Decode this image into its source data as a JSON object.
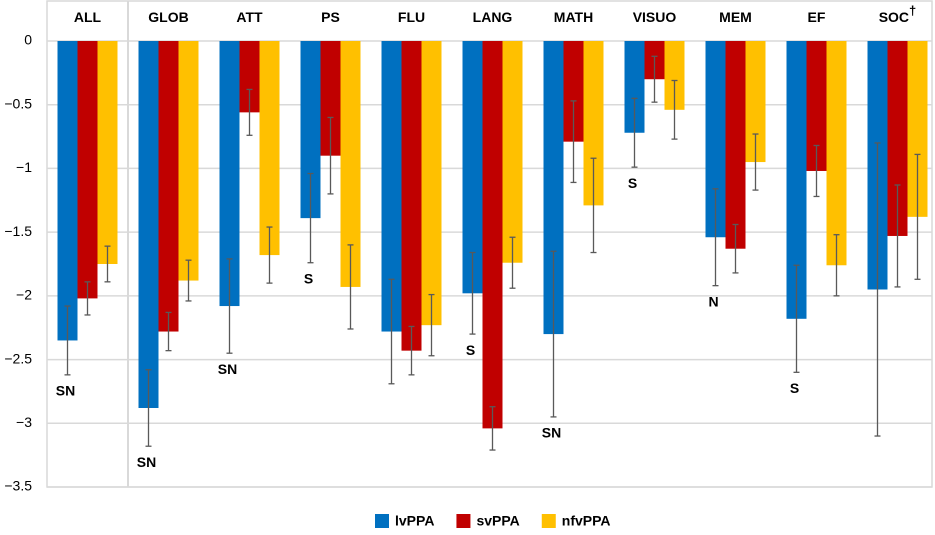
{
  "chart_data": {
    "type": "bar",
    "categories": [
      "ALL",
      "GLOB",
      "ATT",
      "PS",
      "FLU",
      "LANG",
      "MATH",
      "VISUO",
      "MEM",
      "EF",
      "SOC"
    ],
    "category_markers": [
      null,
      null,
      null,
      null,
      null,
      null,
      null,
      null,
      null,
      null,
      "†"
    ],
    "annotations": [
      "SN",
      "SN",
      "SN",
      "S",
      null,
      "S",
      "SN",
      "S",
      "N",
      "S",
      null
    ],
    "series": [
      {
        "name": "lvPPA",
        "color": "#0070c0",
        "values": [
          -2.35,
          -2.88,
          -2.08,
          -1.39,
          -2.28,
          -1.98,
          -2.3,
          -0.72,
          -1.54,
          -2.18,
          -1.95
        ],
        "errors": [
          0.27,
          0.3,
          0.37,
          0.35,
          0.41,
          0.32,
          0.65,
          0.27,
          0.38,
          0.42,
          1.15
        ]
      },
      {
        "name": "svPPA",
        "color": "#c00000",
        "values": [
          -2.02,
          -2.28,
          -0.56,
          -0.9,
          -2.43,
          -3.04,
          -0.79,
          -0.3,
          -1.63,
          -1.02,
          -1.53
        ],
        "errors": [
          0.13,
          0.15,
          0.18,
          0.3,
          0.19,
          0.17,
          0.32,
          0.18,
          0.19,
          0.2,
          0.4
        ]
      },
      {
        "name": "nfvPPA",
        "color": "#ffc000",
        "values": [
          -1.75,
          -1.88,
          -1.68,
          -1.93,
          -2.23,
          -1.74,
          -1.29,
          -0.54,
          -0.95,
          -1.76,
          -1.38
        ],
        "errors": [
          0.14,
          0.16,
          0.22,
          0.33,
          0.24,
          0.2,
          0.37,
          0.23,
          0.22,
          0.24,
          0.49
        ]
      }
    ],
    "ylim": [
      -3.5,
      0
    ],
    "yticks": [
      0,
      {
        "value": -0.5,
        "label": "−0.5"
      },
      {
        "value": -1,
        "label": "−1"
      },
      {
        "value": -1.5,
        "label": "−1.5"
      },
      {
        "value": -2,
        "label": "−2"
      },
      {
        "value": -2.5,
        "label": "−2.5"
      },
      {
        "value": -3,
        "label": "−3"
      },
      {
        "value": -3.5,
        "label": "−3.5"
      }
    ],
    "grid": true,
    "legend": "bottom"
  }
}
